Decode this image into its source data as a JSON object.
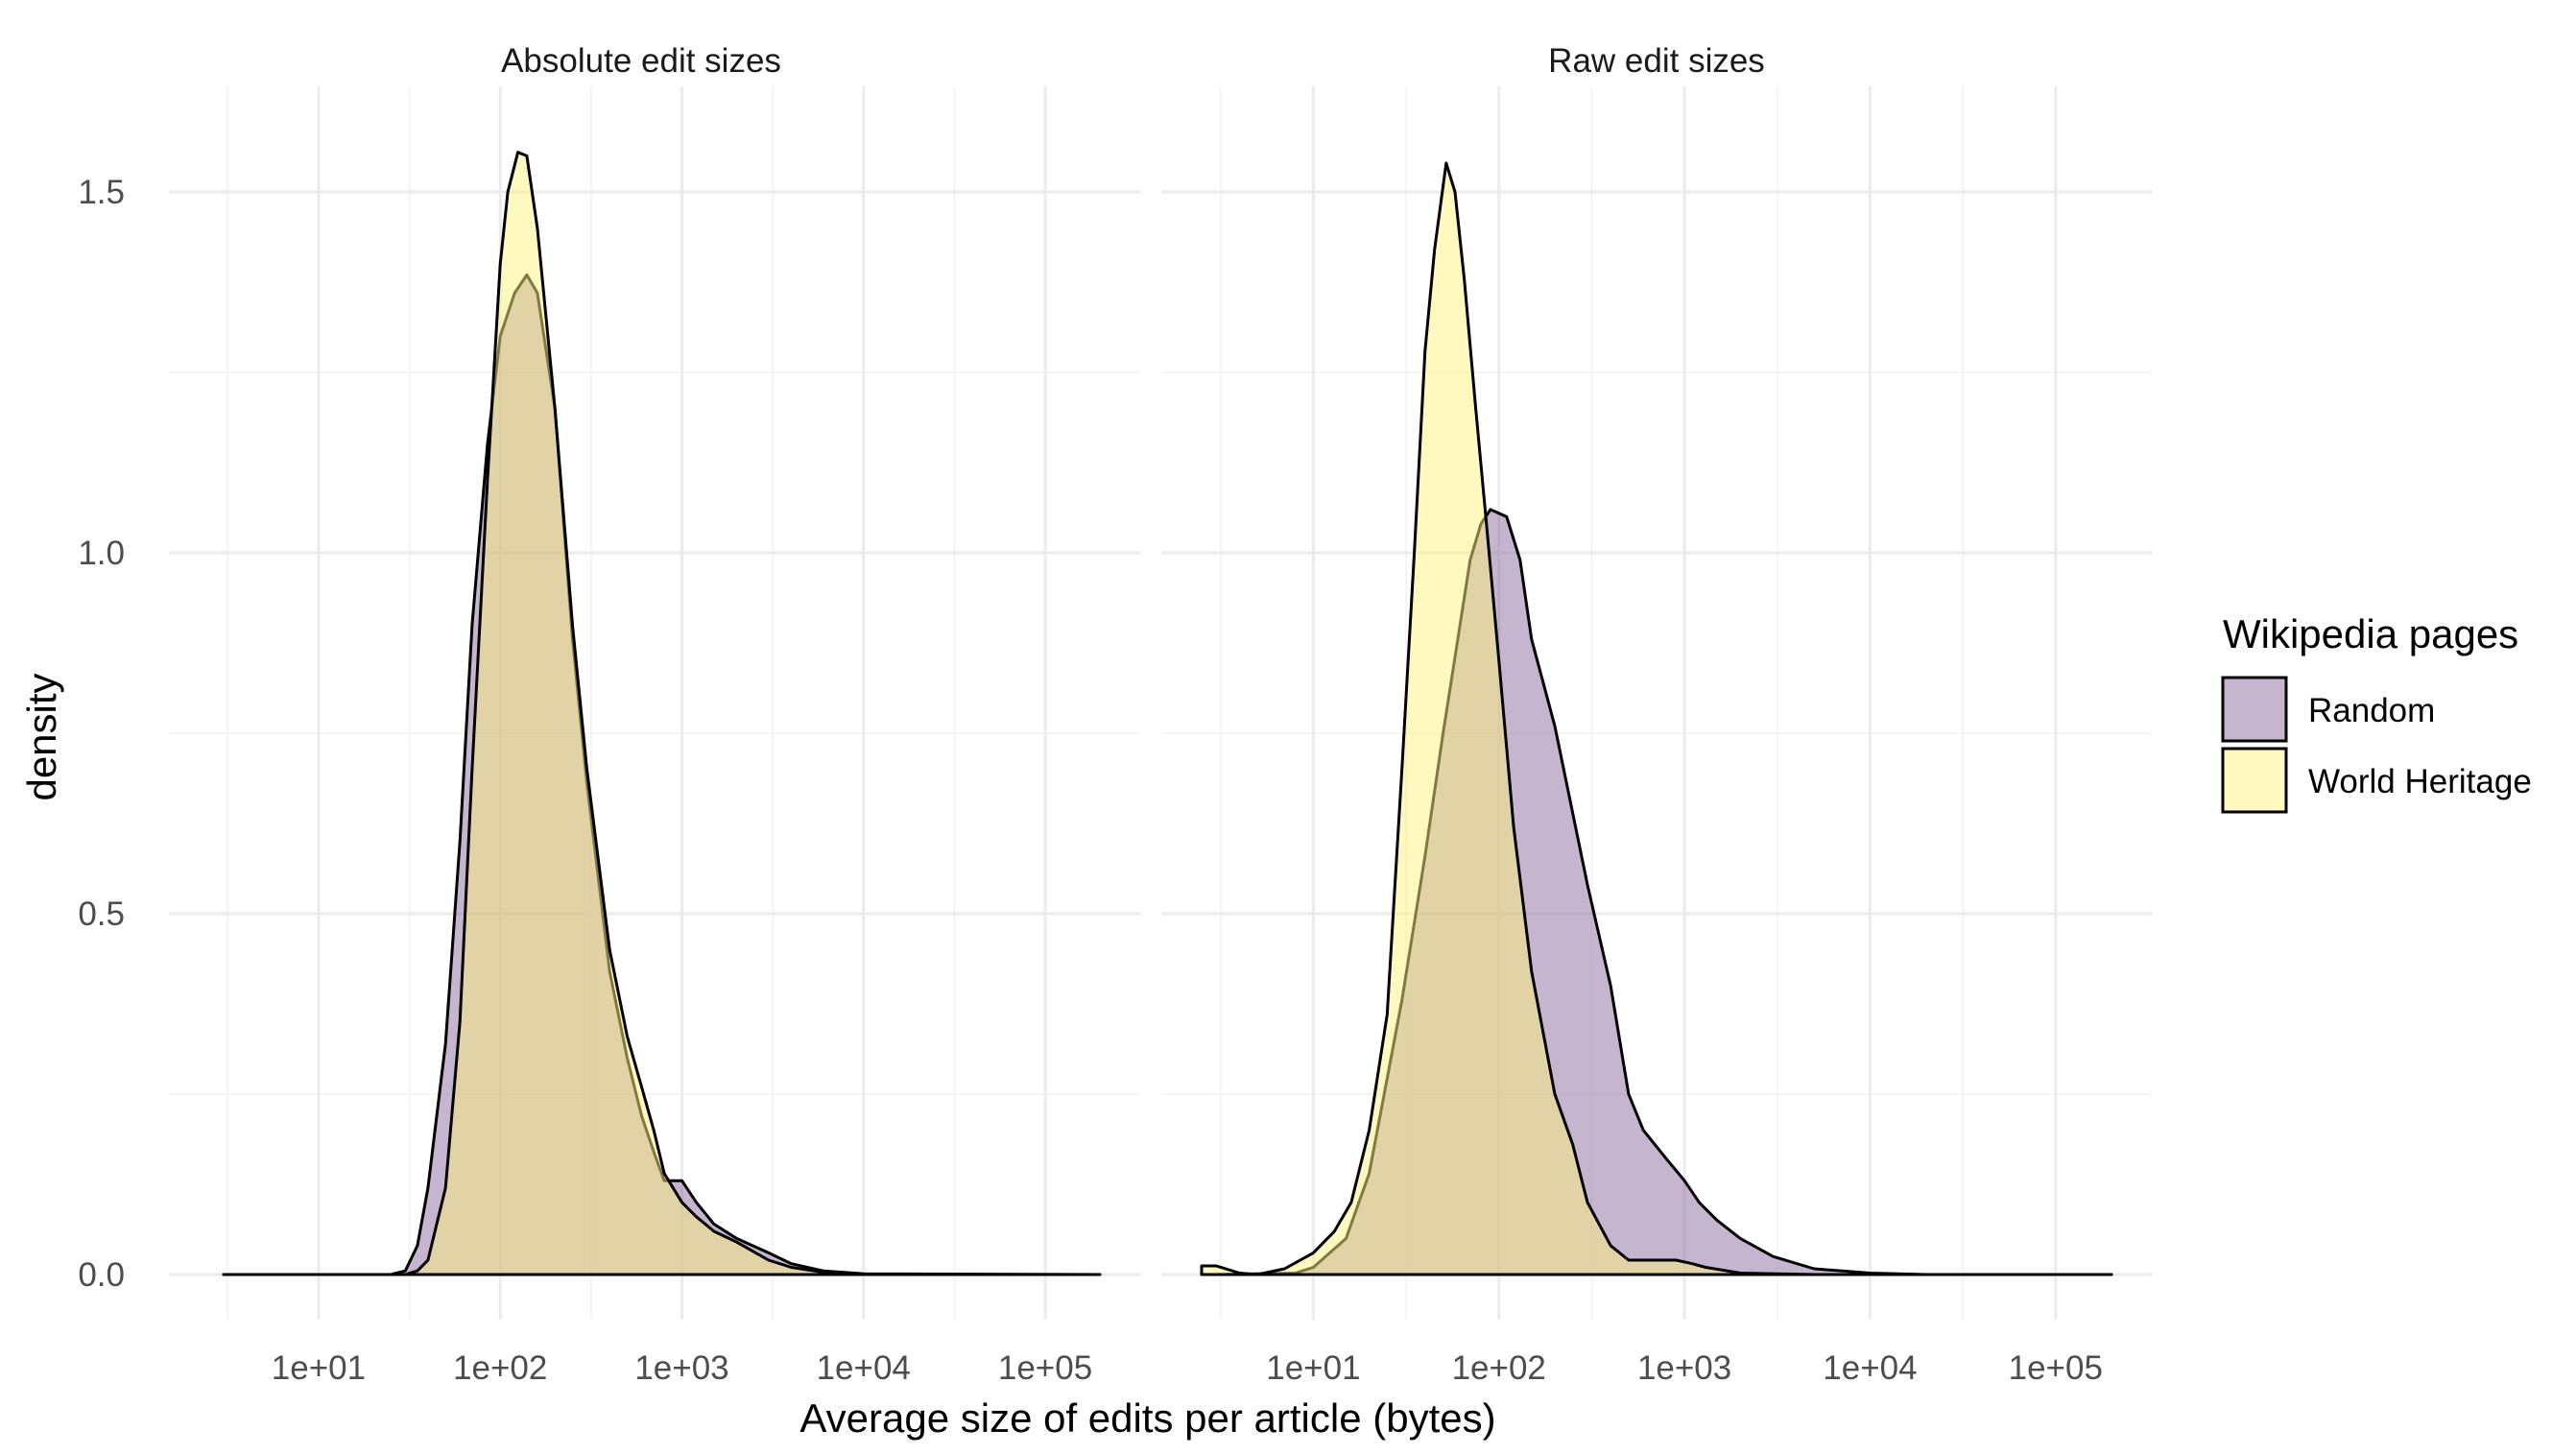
{
  "chart_data": {
    "type": "area",
    "ylabel": "density",
    "xlabel": "Average size of edits per article (bytes)",
    "x_scale": "log10",
    "xlim": [
      2.5,
      200000
    ],
    "ylim": [
      0,
      1.6
    ],
    "x_ticks": [
      "1e+01",
      "1e+02",
      "1e+03",
      "1e+04",
      "1e+05"
    ],
    "y_ticks": [
      "0.0",
      "0.5",
      "1.0",
      "1.5"
    ],
    "grid": true,
    "legend": {
      "title": "Wikipedia pages",
      "position": "right",
      "entries": [
        {
          "name": "Random",
          "color": "#8c6ba0"
        },
        {
          "name": "World Heritage",
          "color": "#fff27f"
        }
      ]
    },
    "fill_opacity": 0.5,
    "panels": [
      {
        "title": "Absolute edit sizes",
        "series": [
          {
            "name": "Random",
            "points": [
              [
                3,
                0
              ],
              [
                25,
                0
              ],
              [
                30,
                0.005
              ],
              [
                35,
                0.04
              ],
              [
                40,
                0.12
              ],
              [
                50,
                0.32
              ],
              [
                60,
                0.6
              ],
              [
                70,
                0.9
              ],
              [
                85,
                1.15
              ],
              [
                100,
                1.3
              ],
              [
                120,
                1.36
              ],
              [
                140,
                1.385
              ],
              [
                160,
                1.36
              ],
              [
                200,
                1.2
              ],
              [
                250,
                0.88
              ],
              [
                300,
                0.68
              ],
              [
                400,
                0.42
              ],
              [
                500,
                0.3
              ],
              [
                600,
                0.22
              ],
              [
                700,
                0.17
              ],
              [
                800,
                0.13
              ],
              [
                1000,
                0.13
              ],
              [
                1200,
                0.1
              ],
              [
                1500,
                0.07
              ],
              [
                2000,
                0.05
              ],
              [
                3000,
                0.03
              ],
              [
                4000,
                0.015
              ],
              [
                6000,
                0.005
              ],
              [
                10000,
                0.001
              ],
              [
                200000,
                0
              ]
            ]
          },
          {
            "name": "World Heritage",
            "points": [
              [
                3,
                0
              ],
              [
                30,
                0
              ],
              [
                35,
                0.005
              ],
              [
                40,
                0.02
              ],
              [
                50,
                0.12
              ],
              [
                60,
                0.35
              ],
              [
                70,
                0.7
              ],
              [
                85,
                1.1
              ],
              [
                100,
                1.4
              ],
              [
                110,
                1.5
              ],
              [
                125,
                1.555
              ],
              [
                140,
                1.55
              ],
              [
                160,
                1.45
              ],
              [
                200,
                1.2
              ],
              [
                250,
                0.9
              ],
              [
                300,
                0.7
              ],
              [
                400,
                0.45
              ],
              [
                500,
                0.33
              ],
              [
                600,
                0.26
              ],
              [
                700,
                0.2
              ],
              [
                800,
                0.14
              ],
              [
                1000,
                0.1
              ],
              [
                1200,
                0.08
              ],
              [
                1500,
                0.06
              ],
              [
                2000,
                0.045
              ],
              [
                3000,
                0.02
              ],
              [
                4000,
                0.01
              ],
              [
                6000,
                0.003
              ],
              [
                10000,
                0
              ],
              [
                200000,
                0
              ]
            ]
          }
        ]
      },
      {
        "title": "Raw edit sizes",
        "series": [
          {
            "name": "Random",
            "points": [
              [
                3,
                0
              ],
              [
                8,
                0.002
              ],
              [
                10,
                0.01
              ],
              [
                15,
                0.05
              ],
              [
                20,
                0.14
              ],
              [
                30,
                0.38
              ],
              [
                40,
                0.58
              ],
              [
                50,
                0.75
              ],
              [
                60,
                0.88
              ],
              [
                70,
                0.99
              ],
              [
                80,
                1.04
              ],
              [
                90,
                1.06
              ],
              [
                110,
                1.05
              ],
              [
                130,
                0.99
              ],
              [
                150,
                0.88
              ],
              [
                200,
                0.76
              ],
              [
                300,
                0.54
              ],
              [
                400,
                0.4
              ],
              [
                500,
                0.25
              ],
              [
                600,
                0.2
              ],
              [
                800,
                0.16
              ],
              [
                1000,
                0.13
              ],
              [
                1200,
                0.1
              ],
              [
                1500,
                0.075
              ],
              [
                2000,
                0.05
              ],
              [
                3000,
                0.025
              ],
              [
                5000,
                0.008
              ],
              [
                10000,
                0.002
              ],
              [
                20000,
                0
              ],
              [
                200000,
                0
              ]
            ]
          },
          {
            "name": "World Heritage",
            "points": [
              [
                2.5,
                0.012
              ],
              [
                3,
                0.012
              ],
              [
                4,
                0.002
              ],
              [
                5,
                0
              ],
              [
                7,
                0.008
              ],
              [
                10,
                0.03
              ],
              [
                13,
                0.06
              ],
              [
                16,
                0.1
              ],
              [
                20,
                0.2
              ],
              [
                25,
                0.36
              ],
              [
                30,
                0.7
              ],
              [
                35,
                1.0
              ],
              [
                40,
                1.28
              ],
              [
                45,
                1.42
              ],
              [
                52,
                1.54
              ],
              [
                58,
                1.5
              ],
              [
                65,
                1.38
              ],
              [
                75,
                1.2
              ],
              [
                85,
                1.05
              ],
              [
                100,
                0.85
              ],
              [
                120,
                0.62
              ],
              [
                150,
                0.42
              ],
              [
                200,
                0.25
              ],
              [
                250,
                0.18
              ],
              [
                300,
                0.1
              ],
              [
                400,
                0.04
              ],
              [
                500,
                0.02
              ],
              [
                700,
                0.02
              ],
              [
                900,
                0.02
              ],
              [
                1100,
                0.015
              ],
              [
                1300,
                0.01
              ],
              [
                2000,
                0.002
              ],
              [
                5000,
                0
              ],
              [
                200000,
                0
              ]
            ]
          }
        ]
      }
    ]
  }
}
